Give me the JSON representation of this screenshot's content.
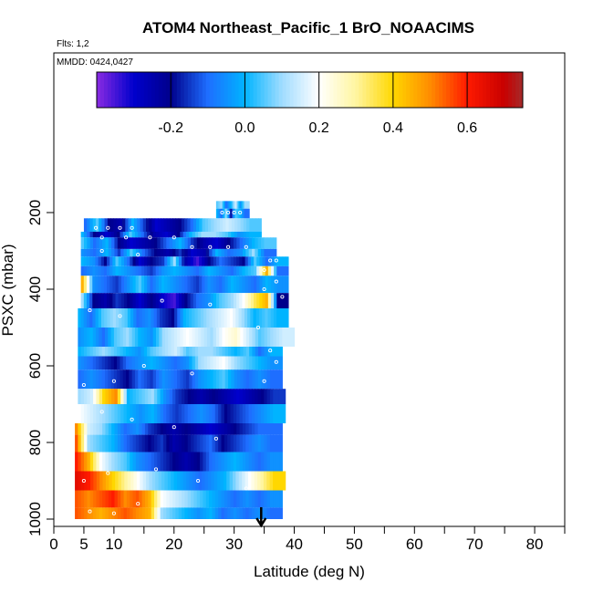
{
  "title": "ATOM4 Northeast_Pacific_1 BrO_NOAACIMS",
  "flights_note": "Flts: 1,2",
  "date_note": "MMDD: 0424,0427",
  "chart_data": {
    "type": "heatmap",
    "title": "ATOM4 Northeast_Pacific_1 BrO_NOAACIMS",
    "xlabel": "Latitude (deg N)",
    "ylabel": "PSXC (mbar)",
    "xlim": [
      0,
      85
    ],
    "ylim": [
      1000,
      0
    ],
    "x_ticks": [
      0,
      5,
      10,
      20,
      30,
      40,
      50,
      60,
      70,
      80
    ],
    "x_minor_ticks": [
      0,
      5,
      10,
      15,
      20,
      25,
      30,
      35,
      40,
      45,
      50,
      55,
      60,
      65,
      70,
      75,
      80,
      85
    ],
    "y_ticks": [
      200,
      400,
      600,
      800,
      1000
    ],
    "colorbar": {
      "range": [
        -0.4,
        0.75
      ],
      "ticks": [
        -0.2,
        0,
        0.2,
        0.4,
        0.6
      ],
      "tick_labels": [
        "-0.2",
        "0.0",
        "0.2",
        "0.4",
        "0.6"
      ],
      "segment_edges": [
        -0.2,
        0,
        0.2,
        0.4,
        0.6
      ],
      "stops": [
        {
          "v": -0.4,
          "c": "#8a2be2"
        },
        {
          "v": -0.3,
          "c": "#0000cd"
        },
        {
          "v": -0.2,
          "c": "#00008b"
        },
        {
          "v": -0.1,
          "c": "#1e6eff"
        },
        {
          "v": 0.0,
          "c": "#00b4ff"
        },
        {
          "v": 0.1,
          "c": "#a0dcff"
        },
        {
          "v": 0.2,
          "c": "#ffffff"
        },
        {
          "v": 0.3,
          "c": "#fff5a0"
        },
        {
          "v": 0.4,
          "c": "#ffd700"
        },
        {
          "v": 0.5,
          "c": "#ff8c00"
        },
        {
          "v": 0.6,
          "c": "#ff1a00"
        },
        {
          "v": 0.7,
          "c": "#c80000"
        },
        {
          "v": 0.75,
          "c": "#a52a2a"
        }
      ]
    },
    "bands": [
      {
        "p": [
          170,
          190
        ],
        "x0": 27,
        "x1": 32.5,
        "v": [
          0.05,
          0.1,
          -0.1,
          0.0,
          0.15,
          -0.05,
          0.1
        ]
      },
      {
        "p": [
          190,
          215
        ],
        "x0": 27,
        "x1": 32.5,
        "v": [
          0.0,
          -0.1,
          0.1,
          -0.2,
          0.05,
          0.0,
          -0.1
        ]
      },
      {
        "p": [
          215,
          250
        ],
        "x0": 5,
        "x1": 34.5,
        "v": [
          -0.1,
          0.05,
          -0.2,
          -0.25,
          0.0,
          -0.15,
          -0.3,
          -0.25,
          -0.2,
          -0.1,
          0.05,
          0.1,
          0.15,
          0.1,
          0.05
        ]
      },
      {
        "p": [
          250,
          265
        ],
        "x0": 4.5,
        "x1": 34.5,
        "v": [
          0.0,
          -0.2,
          -0.3,
          -0.2,
          0.05,
          -0.1,
          -0.25,
          -0.3,
          -0.2,
          0.0,
          0.1,
          0.1,
          0.05,
          -0.05,
          0.0
        ]
      },
      {
        "p": [
          265,
          295
        ],
        "x0": 4.5,
        "x1": 37,
        "v": [
          0.05,
          -0.1,
          0.0,
          -0.2,
          -0.3,
          -0.25,
          -0.2,
          -0.1,
          0.0,
          -0.15,
          -0.25,
          -0.3,
          -0.2,
          -0.1,
          0.0,
          0.05
        ]
      },
      {
        "p": [
          295,
          315
        ],
        "x0": 4.5,
        "x1": 37,
        "v": [
          -0.05,
          -0.1,
          0.0,
          -0.15,
          0.05,
          -0.1,
          -0.2,
          -0.25,
          -0.15,
          -0.3,
          -0.25,
          0.0,
          -0.1,
          -0.05,
          0.1,
          -0.1
        ]
      },
      {
        "p": [
          315,
          340
        ],
        "x0": 4.5,
        "x1": 39,
        "v": [
          0.0,
          -0.05,
          -0.2,
          0.05,
          -0.1,
          -0.3,
          -0.2,
          -0.15,
          0.1,
          -0.25,
          -0.35,
          -0.2,
          -0.1,
          -0.15,
          -0.2,
          0.05,
          -0.1,
          0.0
        ]
      },
      {
        "p": [
          340,
          365
        ],
        "x0": 4.5,
        "x1": 39,
        "v": [
          -0.1,
          -0.05,
          -0.1,
          0.0,
          -0.05,
          -0.1,
          -0.15,
          -0.05,
          0.0,
          -0.05,
          -0.1,
          0.0,
          -0.05,
          -0.1,
          0.0,
          0.05,
          0.45,
          -0.1
        ]
      },
      {
        "p": [
          365,
          410
        ],
        "x0": 4.5,
        "x1": 39,
        "v": [
          0.45,
          -0.05,
          -0.1,
          -0.15,
          -0.05,
          0.05,
          -0.1,
          0.0,
          -0.05,
          -0.1,
          -0.15,
          -0.05,
          -0.1,
          0.0,
          -0.05,
          -0.1,
          0.0,
          -0.05
        ]
      },
      {
        "p": [
          410,
          450
        ],
        "x0": 4.5,
        "x1": 39,
        "v": [
          0.1,
          -0.2,
          -0.25,
          -0.15,
          -0.2,
          -0.3,
          -0.2,
          -0.3,
          -0.35,
          -0.2,
          -0.1,
          -0.05,
          0.05,
          0.1,
          0.2,
          0.35,
          0.45,
          -0.2
        ]
      },
      {
        "p": [
          450,
          500
        ],
        "x0": 4,
        "x1": 39,
        "v": [
          0.0,
          -0.1,
          0.05,
          0.1,
          0.05,
          -0.1,
          -0.05,
          -0.15,
          -0.2,
          0.0,
          0.05,
          0.1,
          0.15,
          0.2,
          0.1,
          0.0,
          0.05,
          0.0
        ]
      },
      {
        "p": [
          500,
          550
        ],
        "x0": 4,
        "x1": 40,
        "v": [
          -0.05,
          0.0,
          -0.1,
          0.05,
          0.1,
          0.0,
          -0.05,
          0.1,
          0.15,
          0.2,
          0.15,
          0.1,
          0.2,
          0.25,
          0.15,
          0.05,
          0.1,
          0.15
        ]
      },
      {
        "p": [
          550,
          575
        ],
        "x0": 4,
        "x1": 38,
        "v": [
          0.0,
          0.05,
          0.1,
          0.05,
          0.0,
          -0.05,
          0.05,
          0.1,
          0.15,
          0.05,
          0.1,
          0.1,
          0.05,
          0.0,
          0.05,
          -0.1,
          0.0
        ]
      },
      {
        "p": [
          575,
          610
        ],
        "x0": 4,
        "x1": 38,
        "v": [
          -0.05,
          -0.1,
          -0.15,
          -0.2,
          -0.1,
          -0.05,
          0.0,
          -0.05,
          -0.1,
          -0.05,
          0.1,
          0.15,
          0.2,
          0.1,
          0.05,
          0.0,
          -0.05
        ]
      },
      {
        "p": [
          610,
          660
        ],
        "x0": 4,
        "x1": 38,
        "v": [
          -0.1,
          -0.05,
          -0.1,
          -0.15,
          -0.2,
          -0.1,
          -0.15,
          -0.05,
          -0.1,
          -0.15,
          -0.05,
          0.0,
          0.05,
          -0.05,
          -0.1,
          -0.05,
          -0.1
        ]
      },
      {
        "p": [
          660,
          700
        ],
        "x0": 4,
        "x1": 38.5,
        "v": [
          0.1,
          0.15,
          0.4,
          0.5,
          0.0,
          0.05,
          0.1,
          -0.05,
          -0.15,
          -0.2,
          -0.25,
          -0.2,
          -0.25,
          -0.3,
          -0.25,
          -0.2,
          -0.15
        ]
      },
      {
        "p": [
          700,
          750
        ],
        "x0": 4,
        "x1": 38.5,
        "v": [
          0.2,
          0.15,
          0.1,
          0.05,
          0.0,
          -0.05,
          0.0,
          -0.1,
          -0.15,
          -0.1,
          -0.05,
          -0.1,
          -0.2,
          -0.15,
          -0.1,
          -0.05,
          0.0
        ]
      },
      {
        "p": [
          750,
          780
        ],
        "x0": 3.5,
        "x1": 38,
        "v": [
          0.5,
          0.15,
          0.1,
          0.0,
          -0.1,
          -0.05,
          -0.15,
          -0.2,
          -0.25,
          -0.2,
          -0.25,
          -0.3,
          -0.25,
          -0.2,
          -0.15,
          -0.1,
          -0.1
        ]
      },
      {
        "p": [
          780,
          825
        ],
        "x0": 3.5,
        "x1": 38,
        "v": [
          0.55,
          0.1,
          0.05,
          0.0,
          -0.1,
          -0.15,
          -0.2,
          -0.15,
          -0.25,
          -0.2,
          -0.15,
          -0.1,
          -0.2,
          -0.15,
          -0.1,
          -0.05,
          -0.1
        ]
      },
      {
        "p": [
          825,
          875
        ],
        "x0": 3.5,
        "x1": 38,
        "v": [
          0.6,
          0.45,
          0.2,
          0.1,
          0.05,
          -0.05,
          -0.1,
          -0.15,
          -0.2,
          -0.25,
          -0.2,
          -0.1,
          -0.05,
          0.0,
          -0.05,
          -0.1,
          -0.05
        ]
      },
      {
        "p": [
          875,
          925
        ],
        "x0": 3.5,
        "x1": 38.5,
        "v": [
          0.65,
          0.6,
          0.5,
          0.4,
          0.3,
          0.2,
          0.1,
          0.05,
          0.0,
          -0.05,
          -0.1,
          -0.05,
          0.0,
          0.1,
          0.2,
          0.3,
          0.4
        ]
      },
      {
        "p": [
          925,
          970
        ],
        "x0": 3.5,
        "x1": 38,
        "v": [
          0.55,
          0.5,
          0.55,
          0.6,
          0.5,
          0.55,
          0.45,
          0.2,
          0.15,
          0.1,
          0.05,
          0.0,
          -0.05,
          -0.1,
          -0.05,
          -0.1,
          -0.05
        ]
      },
      {
        "p": [
          970,
          1000
        ],
        "x0": 3.5,
        "x1": 38,
        "v": [
          0.55,
          0.5,
          0.45,
          0.5,
          0.55,
          0.5,
          0.45,
          0.1,
          0.05,
          0.0,
          -0.05,
          0.0,
          -0.1,
          -0.05,
          -0.1,
          -0.05,
          -0.1
        ]
      }
    ],
    "markers": [
      {
        "x": 30,
        "y": 200
      },
      {
        "x": 28,
        "y": 200
      },
      {
        "x": 29,
        "y": 200
      },
      {
        "x": 31,
        "y": 200
      },
      {
        "x": 7,
        "y": 240
      },
      {
        "x": 9,
        "y": 240
      },
      {
        "x": 11,
        "y": 240
      },
      {
        "x": 13,
        "y": 240
      },
      {
        "x": 8,
        "y": 265
      },
      {
        "x": 12,
        "y": 265
      },
      {
        "x": 16,
        "y": 265
      },
      {
        "x": 20,
        "y": 265
      },
      {
        "x": 23,
        "y": 290
      },
      {
        "x": 26,
        "y": 290
      },
      {
        "x": 29,
        "y": 290
      },
      {
        "x": 32,
        "y": 290
      },
      {
        "x": 36,
        "y": 325
      },
      {
        "x": 37,
        "y": 325
      },
      {
        "x": 8,
        "y": 300
      },
      {
        "x": 14,
        "y": 310
      },
      {
        "x": 35,
        "y": 350
      },
      {
        "x": 37,
        "y": 380
      },
      {
        "x": 35,
        "y": 400
      },
      {
        "x": 38,
        "y": 420
      },
      {
        "x": 6,
        "y": 455
      },
      {
        "x": 11,
        "y": 470
      },
      {
        "x": 18,
        "y": 430
      },
      {
        "x": 26,
        "y": 440
      },
      {
        "x": 34,
        "y": 500
      },
      {
        "x": 36,
        "y": 560
      },
      {
        "x": 37,
        "y": 590
      },
      {
        "x": 35,
        "y": 640
      },
      {
        "x": 5,
        "y": 650
      },
      {
        "x": 10,
        "y": 640
      },
      {
        "x": 15,
        "y": 600
      },
      {
        "x": 23,
        "y": 620
      },
      {
        "x": 8,
        "y": 720
      },
      {
        "x": 13,
        "y": 740
      },
      {
        "x": 20,
        "y": 760
      },
      {
        "x": 27,
        "y": 790
      },
      {
        "x": 5,
        "y": 900
      },
      {
        "x": 9,
        "y": 880
      },
      {
        "x": 17,
        "y": 870
      },
      {
        "x": 24,
        "y": 900
      },
      {
        "x": 32,
        "y": 920
      },
      {
        "x": 6,
        "y": 980
      },
      {
        "x": 10,
        "y": 985
      },
      {
        "x": 14,
        "y": 960
      }
    ],
    "arrow_x": 34.5
  }
}
